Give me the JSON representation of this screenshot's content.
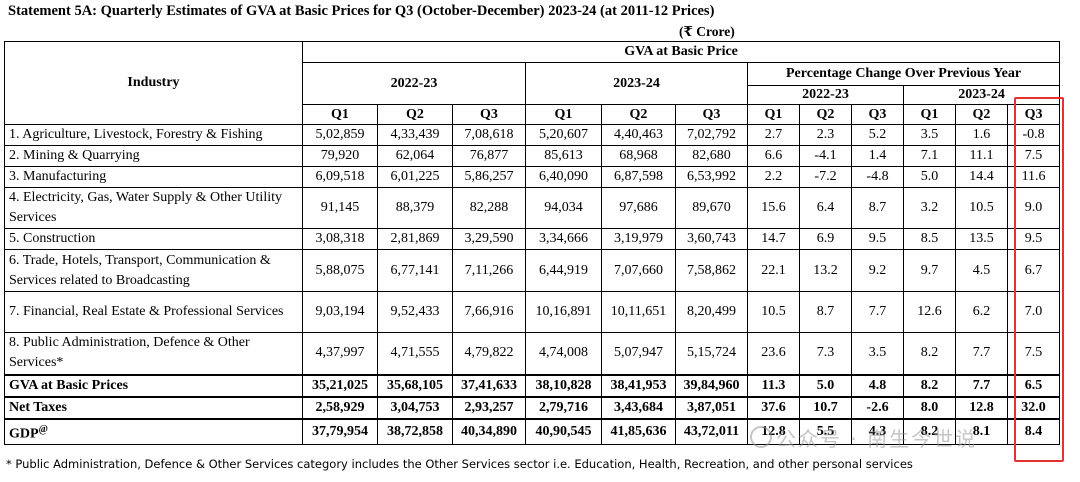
{
  "title": "Statement 5A: Quarterly Estimates of GVA at Basic Prices for Q3 (October-December) 2023-24 (at 2011-12 Prices)",
  "unit": "(₹ Crore)",
  "headers": {
    "industry": "Industry",
    "gva_group": "GVA at Basic Price",
    "year1": "2022-23",
    "year2": "2023-24",
    "pct_group": "Percentage Change Over Previous Year",
    "pct_year1": "2022-23",
    "pct_year2": "2023-24",
    "quarters": [
      "Q1",
      "Q2",
      "Q3",
      "Q1",
      "Q2",
      "Q3",
      "Q1",
      "Q2",
      "Q3",
      "Q1",
      "Q2",
      "Q3"
    ]
  },
  "rows": [
    {
      "industry": "1. Agriculture, Livestock, Forestry & Fishing",
      "values": [
        "5,02,859",
        "4,33,439",
        "7,08,618",
        "5,20,607",
        "4,40,463",
        "7,02,792",
        "2.7",
        "2.3",
        "5.2",
        "3.5",
        "1.6",
        "-0.8"
      ]
    },
    {
      "industry": "2. Mining & Quarrying",
      "values": [
        "79,920",
        "62,064",
        "76,877",
        "85,613",
        "68,968",
        "82,680",
        "6.6",
        "-4.1",
        "1.4",
        "7.1",
        "11.1",
        "7.5"
      ]
    },
    {
      "industry": "3. Manufacturing",
      "values": [
        "6,09,518",
        "6,01,225",
        "5,86,257",
        "6,40,090",
        "6,87,598",
        "6,53,992",
        "2.2",
        "-7.2",
        "-4.8",
        "5.0",
        "14.4",
        "11.6"
      ]
    },
    {
      "industry": "4. Electricity, Gas, Water Supply & Other Utility Services",
      "values": [
        "91,145",
        "88,379",
        "82,288",
        "94,034",
        "97,686",
        "89,670",
        "15.6",
        "6.4",
        "8.7",
        "3.2",
        "10.5",
        "9.0"
      ]
    },
    {
      "industry": "5. Construction",
      "values": [
        "3,08,318",
        "2,81,869",
        "3,29,590",
        "3,34,666",
        "3,19,979",
        "3,60,743",
        "14.7",
        "6.9",
        "9.5",
        "8.5",
        "13.5",
        "9.5"
      ]
    },
    {
      "industry": "6. Trade, Hotels, Transport, Communication & Services related to Broadcasting",
      "values": [
        "5,88,075",
        "6,77,141",
        "7,11,266",
        "6,44,919",
        "7,07,660",
        "7,58,862",
        "22.1",
        "13.2",
        "9.2",
        "9.7",
        "4.5",
        "6.7"
      ]
    },
    {
      "industry": "7. Financial, Real Estate & Professional Services",
      "values": [
        "9,03,194",
        "9,52,433",
        "7,66,916",
        "10,16,891",
        "10,11,651",
        "8,20,499",
        "10.5",
        "8.7",
        "7.7",
        "12.6",
        "6.2",
        "7.0"
      ]
    },
    {
      "industry": "8. Public Administration, Defence & Other Services*",
      "values": [
        "4,37,997",
        "4,71,555",
        "4,79,822",
        "4,74,008",
        "5,07,947",
        "5,15,724",
        "23.6",
        "7.3",
        "3.5",
        "8.2",
        "7.7",
        "7.5"
      ]
    }
  ],
  "totals": [
    {
      "industry": "GVA at Basic Prices",
      "values": [
        "35,21,025",
        "35,68,105",
        "37,41,633",
        "38,10,828",
        "38,41,953",
        "39,84,960",
        "11.3",
        "5.0",
        "4.8",
        "8.2",
        "7.7",
        "6.5"
      ]
    },
    {
      "industry": "Net Taxes",
      "values": [
        "2,58,929",
        "3,04,753",
        "2,93,257",
        "2,79,716",
        "3,43,684",
        "3,87,051",
        "37.6",
        "10.7",
        "-2.6",
        "8.0",
        "12.8",
        "32.0"
      ]
    },
    {
      "industry": "GDP",
      "industry_sup": "@",
      "values": [
        "37,79,954",
        "38,72,858",
        "40,34,890",
        "40,90,545",
        "41,85,636",
        "43,72,011",
        "12.8",
        "5.5",
        "4.3",
        "8.2",
        "8.1",
        "8.4"
      ]
    }
  ],
  "footnote": "* Public Administration, Defence & Other Services category includes the Other Services sector i.e. Education, Health, Recreation, and other personal services",
  "watermark": "公众号 · 南生今世说",
  "highlight_color": "#e63131"
}
